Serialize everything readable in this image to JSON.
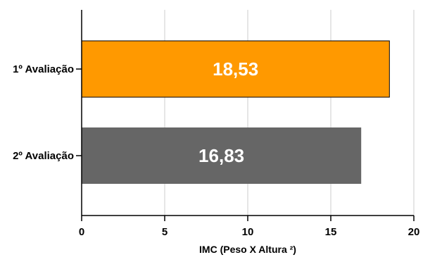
{
  "chart_data": {
    "type": "bar",
    "orientation": "horizontal",
    "title": "",
    "xlabel": "IMC (Peso X Altura ²)",
    "ylabel": "",
    "categories": [
      "1º Avaliação",
      "2º Avaliação"
    ],
    "values": [
      18.53,
      16.83
    ],
    "data_labels": [
      "18,53",
      "16,83"
    ],
    "xlim": [
      0,
      20
    ],
    "xticks": [
      0,
      5,
      10,
      15,
      20
    ],
    "grid": "vertical",
    "legend": "none",
    "bar_colors": [
      "#ff9900",
      "#666666"
    ],
    "bar_edge_color": "#000000",
    "grid_color": "#cccccc"
  }
}
